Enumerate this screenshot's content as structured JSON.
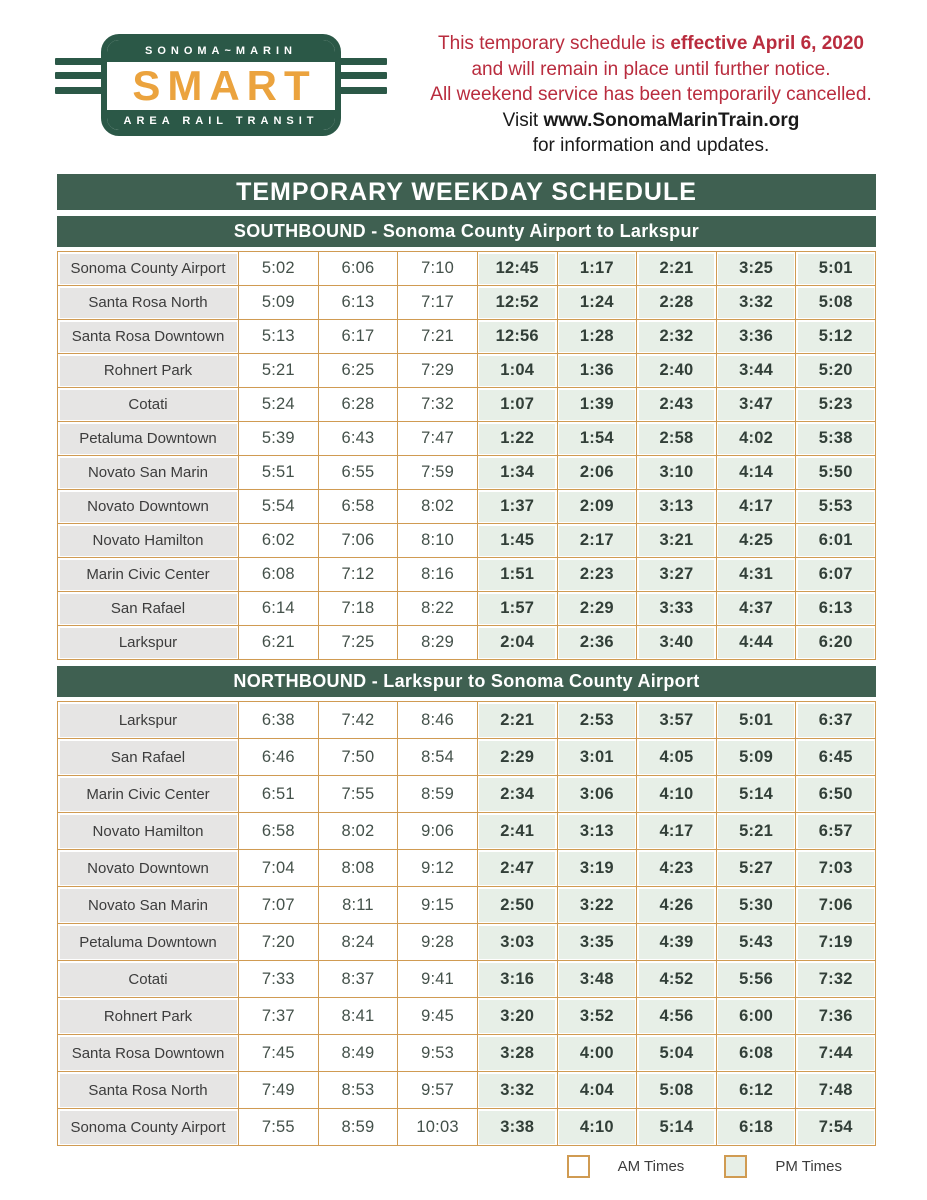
{
  "logo": {
    "top_text": "SONOMA~MARIN",
    "main_text": "SMART",
    "bottom_text": "AREA RAIL TRANSIT"
  },
  "notice": {
    "line1_prefix": "This temporary schedule is ",
    "line1_bold": "effective April 6, 2020",
    "line2": "and will remain in place until further notice.",
    "line3": "All weekend service has been temporarily cancelled.",
    "line4_prefix": "Visit ",
    "line4_bold": "www.SonomaMarinTrain.org",
    "line5": "for information and updates."
  },
  "title_banner": "TEMPORARY WEEKDAY SCHEDULE",
  "southbound": {
    "banner": "SOUTHBOUND - Sonoma County Airport to Larkspur",
    "am_columns": 3,
    "rows": [
      {
        "station": "Sonoma County Airport",
        "times": [
          "5:02",
          "6:06",
          "7:10",
          "12:45",
          "1:17",
          "2:21",
          "3:25",
          "5:01"
        ]
      },
      {
        "station": "Santa Rosa North",
        "times": [
          "5:09",
          "6:13",
          "7:17",
          "12:52",
          "1:24",
          "2:28",
          "3:32",
          "5:08"
        ]
      },
      {
        "station": "Santa Rosa Downtown",
        "times": [
          "5:13",
          "6:17",
          "7:21",
          "12:56",
          "1:28",
          "2:32",
          "3:36",
          "5:12"
        ]
      },
      {
        "station": "Rohnert Park",
        "times": [
          "5:21",
          "6:25",
          "7:29",
          "1:04",
          "1:36",
          "2:40",
          "3:44",
          "5:20"
        ]
      },
      {
        "station": "Cotati",
        "times": [
          "5:24",
          "6:28",
          "7:32",
          "1:07",
          "1:39",
          "2:43",
          "3:47",
          "5:23"
        ]
      },
      {
        "station": "Petaluma Downtown",
        "times": [
          "5:39",
          "6:43",
          "7:47",
          "1:22",
          "1:54",
          "2:58",
          "4:02",
          "5:38"
        ]
      },
      {
        "station": "Novato San Marin",
        "times": [
          "5:51",
          "6:55",
          "7:59",
          "1:34",
          "2:06",
          "3:10",
          "4:14",
          "5:50"
        ]
      },
      {
        "station": "Novato Downtown",
        "times": [
          "5:54",
          "6:58",
          "8:02",
          "1:37",
          "2:09",
          "3:13",
          "4:17",
          "5:53"
        ]
      },
      {
        "station": "Novato Hamilton",
        "times": [
          "6:02",
          "7:06",
          "8:10",
          "1:45",
          "2:17",
          "3:21",
          "4:25",
          "6:01"
        ]
      },
      {
        "station": "Marin Civic Center",
        "times": [
          "6:08",
          "7:12",
          "8:16",
          "1:51",
          "2:23",
          "3:27",
          "4:31",
          "6:07"
        ]
      },
      {
        "station": "San Rafael",
        "times": [
          "6:14",
          "7:18",
          "8:22",
          "1:57",
          "2:29",
          "3:33",
          "4:37",
          "6:13"
        ]
      },
      {
        "station": "Larkspur",
        "times": [
          "6:21",
          "7:25",
          "8:29",
          "2:04",
          "2:36",
          "3:40",
          "4:44",
          "6:20"
        ]
      }
    ]
  },
  "northbound": {
    "banner": "NORTHBOUND - Larkspur to Sonoma County Airport",
    "am_columns": 3,
    "rows": [
      {
        "station": "Larkspur",
        "times": [
          "6:38",
          "7:42",
          "8:46",
          "2:21",
          "2:53",
          "3:57",
          "5:01",
          "6:37"
        ]
      },
      {
        "station": "San Rafael",
        "times": [
          "6:46",
          "7:50",
          "8:54",
          "2:29",
          "3:01",
          "4:05",
          "5:09",
          "6:45"
        ]
      },
      {
        "station": "Marin Civic Center",
        "times": [
          "6:51",
          "7:55",
          "8:59",
          "2:34",
          "3:06",
          "4:10",
          "5:14",
          "6:50"
        ]
      },
      {
        "station": "Novato Hamilton",
        "times": [
          "6:58",
          "8:02",
          "9:06",
          "2:41",
          "3:13",
          "4:17",
          "5:21",
          "6:57"
        ]
      },
      {
        "station": "Novato Downtown",
        "times": [
          "7:04",
          "8:08",
          "9:12",
          "2:47",
          "3:19",
          "4:23",
          "5:27",
          "7:03"
        ]
      },
      {
        "station": "Novato San Marin",
        "times": [
          "7:07",
          "8:11",
          "9:15",
          "2:50",
          "3:22",
          "4:26",
          "5:30",
          "7:06"
        ]
      },
      {
        "station": "Petaluma Downtown",
        "times": [
          "7:20",
          "8:24",
          "9:28",
          "3:03",
          "3:35",
          "4:39",
          "5:43",
          "7:19"
        ]
      },
      {
        "station": "Cotati",
        "times": [
          "7:33",
          "8:37",
          "9:41",
          "3:16",
          "3:48",
          "4:52",
          "5:56",
          "7:32"
        ]
      },
      {
        "station": "Rohnert Park",
        "times": [
          "7:37",
          "8:41",
          "9:45",
          "3:20",
          "3:52",
          "4:56",
          "6:00",
          "7:36"
        ]
      },
      {
        "station": "Santa Rosa Downtown",
        "times": [
          "7:45",
          "8:49",
          "9:53",
          "3:28",
          "4:00",
          "5:04",
          "6:08",
          "7:44"
        ]
      },
      {
        "station": "Santa Rosa North",
        "times": [
          "7:49",
          "8:53",
          "9:57",
          "3:32",
          "4:04",
          "5:08",
          "6:12",
          "7:48"
        ]
      },
      {
        "station": "Sonoma County Airport",
        "times": [
          "7:55",
          "8:59",
          "10:03",
          "3:38",
          "4:10",
          "5:14",
          "6:18",
          "7:54"
        ]
      }
    ]
  },
  "legend": {
    "am_label": "AM Times",
    "pm_label": "PM Times"
  },
  "colors": {
    "banner_green": "#3f6051",
    "logo_green": "#2b5847",
    "smart_orange": "#eba33e",
    "table_border": "#d09b52",
    "notice_red": "#b92c3e",
    "pm_cell": "#e7efe7",
    "station_cell": "#e6e5e4",
    "time_color": "#44514a",
    "pm_time_color": "#323f38",
    "station_text": "#3c3c3c"
  }
}
